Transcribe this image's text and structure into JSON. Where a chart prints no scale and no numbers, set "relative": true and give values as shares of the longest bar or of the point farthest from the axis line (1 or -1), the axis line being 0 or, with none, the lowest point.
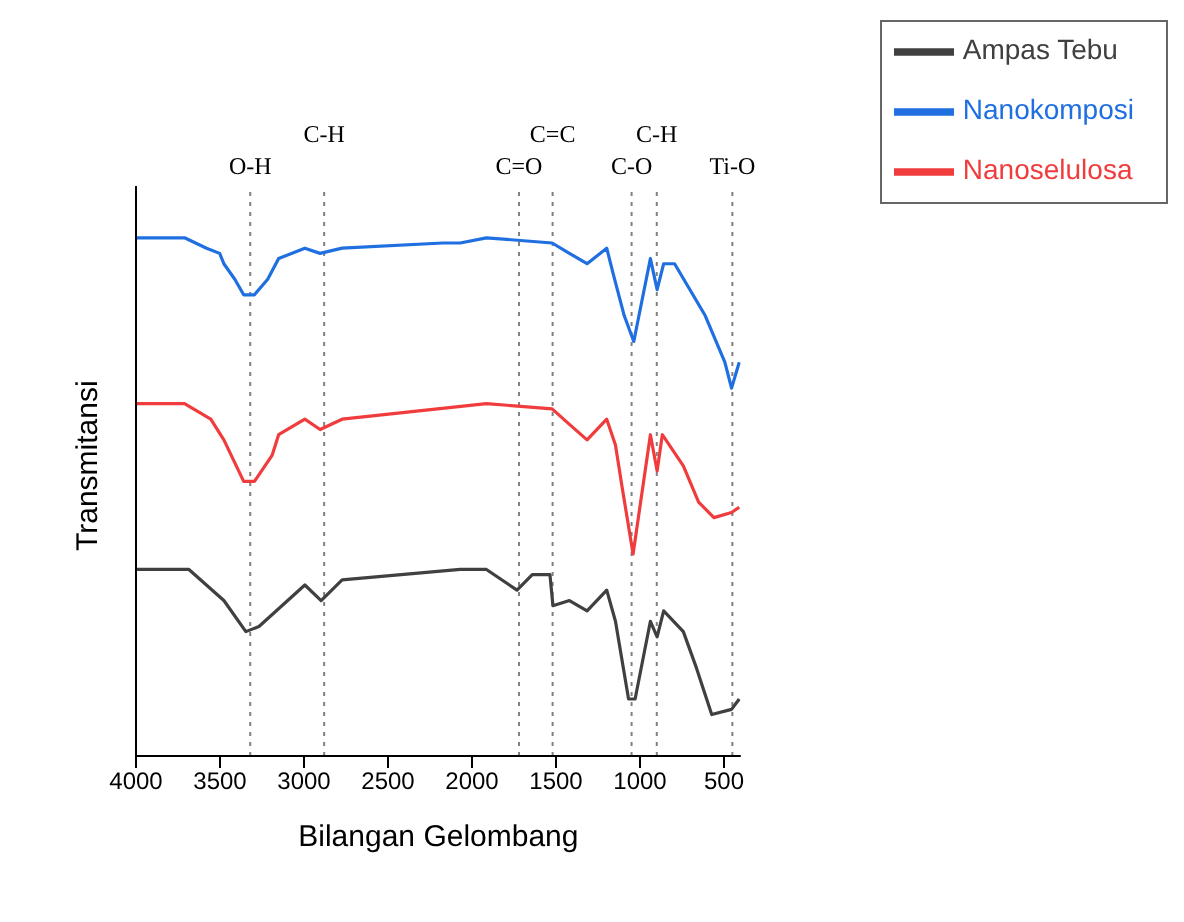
{
  "chart_data": {
    "type": "line",
    "relative": true,
    "xlabel": "Bilangan Gelombang",
    "ylabel": "Transmitansi",
    "xlim": [
      4000,
      400
    ],
    "xticks": [
      4000,
      3500,
      3000,
      2500,
      2000,
      1500,
      1000,
      500
    ],
    "legend": "top right",
    "grid": false,
    "marker": "none",
    "line_style": "solid",
    "series": [
      {
        "name": "Nanokomposi",
        "color": "#1f6fe0",
        "x": [
          4000,
          3711,
          3580,
          3502,
          3477,
          3412,
          3359,
          3295,
          3216,
          3151,
          2995,
          2904,
          2773,
          2174,
          2070,
          1914,
          1523,
          1420,
          1315,
          1198,
          1159,
          1094,
          1037,
          938,
          898,
          859,
          794,
          612,
          495,
          455,
          409
        ],
        "values": [
          1.0,
          1.0,
          0.98,
          0.97,
          0.95,
          0.92,
          0.89,
          0.89,
          0.92,
          0.96,
          0.98,
          0.97,
          0.98,
          0.99,
          0.99,
          1.0,
          0.99,
          0.97,
          0.95,
          0.98,
          0.93,
          0.85,
          0.8,
          0.96,
          0.9,
          0.95,
          0.95,
          0.85,
          0.76,
          0.71,
          0.76
        ]
      },
      {
        "name": "Nanoselulosa",
        "color": "#f03c3c",
        "x": [
          4000,
          3711,
          3555,
          3477,
          3359,
          3295,
          3190,
          3151,
          2995,
          2904,
          2773,
          1914,
          1523,
          1420,
          1315,
          1198,
          1146,
          1107,
          1041,
          938,
          898,
          867,
          742,
          651,
          560,
          455,
          409
        ],
        "values": [
          0.68,
          0.68,
          0.65,
          0.61,
          0.53,
          0.53,
          0.58,
          0.62,
          0.65,
          0.63,
          0.65,
          0.68,
          0.67,
          0.64,
          0.61,
          0.65,
          0.6,
          0.52,
          0.39,
          0.62,
          0.55,
          0.62,
          0.56,
          0.49,
          0.46,
          0.47,
          0.48
        ]
      },
      {
        "name": "Ampas Tebu",
        "color": "#404040",
        "x": [
          4000,
          3685,
          3477,
          3346,
          3268,
          2995,
          2898,
          2773,
          2070,
          1914,
          1732,
          1641,
          1536,
          1518,
          1420,
          1315,
          1198,
          1146,
          1068,
          1029,
          938,
          898,
          859,
          742,
          664,
          573,
          455,
          409
        ],
        "values": [
          0.36,
          0.36,
          0.3,
          0.24,
          0.25,
          0.33,
          0.3,
          0.34,
          0.36,
          0.36,
          0.32,
          0.35,
          0.35,
          0.29,
          0.3,
          0.28,
          0.32,
          0.26,
          0.11,
          0.11,
          0.26,
          0.23,
          0.28,
          0.24,
          0.17,
          0.08,
          0.09,
          0.11
        ]
      }
    ],
    "ref_lines": [
      {
        "axis": "x",
        "value": 3320,
        "label": "O-H",
        "line_style": "dotted",
        "color": "#808080"
      },
      {
        "axis": "x",
        "value": 2880,
        "label": "C-H",
        "line_style": "dotted",
        "color": "#808080"
      },
      {
        "axis": "x",
        "value": 1720,
        "label": "C=O",
        "line_style": "dotted",
        "color": "#808080"
      },
      {
        "axis": "x",
        "value": 1520,
        "label": "C=C",
        "line_style": "dotted",
        "color": "#808080"
      },
      {
        "axis": "x",
        "value": 1050,
        "label": "C-O",
        "line_style": "dotted",
        "color": "#808080"
      },
      {
        "axis": "x",
        "value": 900,
        "label": "C-H",
        "line_style": "dotted",
        "color": "#808080"
      },
      {
        "axis": "x",
        "value": 450,
        "label": "Ti-O",
        "line_style": "dotted",
        "color": "#808080"
      }
    ]
  }
}
